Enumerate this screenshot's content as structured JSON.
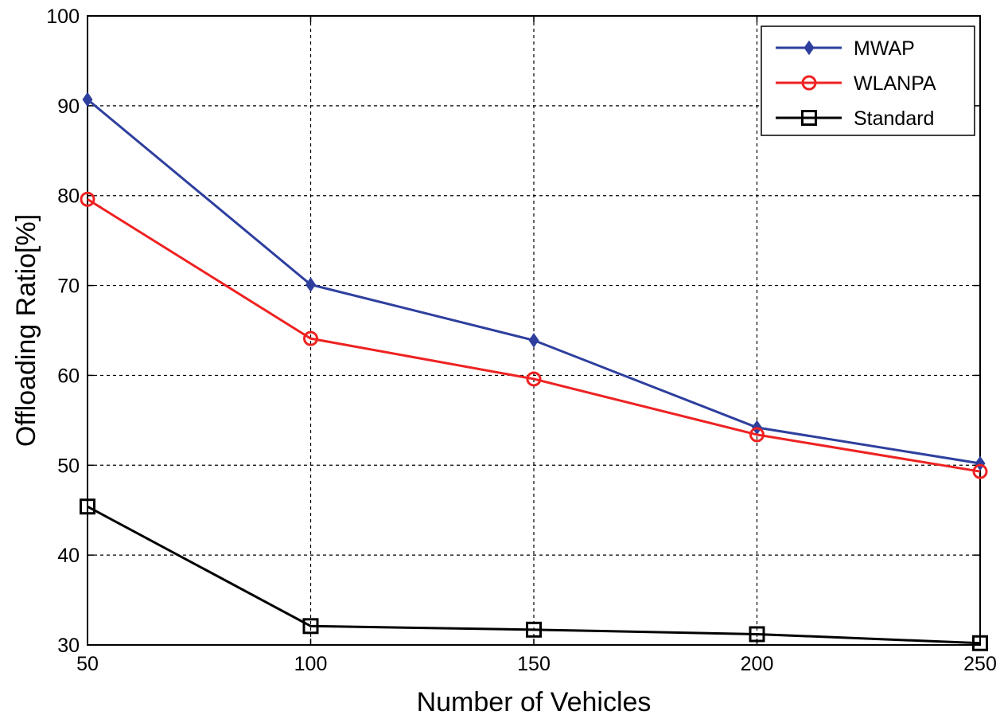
{
  "chart_data": {
    "type": "line",
    "title": "",
    "xlabel": "Number of Vehicles",
    "ylabel": "Offloading Ratio[%]",
    "x": [
      50,
      100,
      150,
      200,
      250
    ],
    "xlim": [
      50,
      250
    ],
    "ylim": [
      30,
      100
    ],
    "xticks": [
      "50",
      "100",
      "150",
      "200",
      "250"
    ],
    "yticks": [
      "30",
      "40",
      "50",
      "60",
      "70",
      "80",
      "90",
      "100"
    ],
    "grid": true,
    "legend_position": "top-right",
    "series": [
      {
        "name": "MWAP",
        "color": "#2e3f9e",
        "marker": "diamond",
        "values": [
          90.7,
          70.1,
          63.9,
          54.2,
          50.2
        ]
      },
      {
        "name": "WLANPA",
        "color": "#ee2222",
        "marker": "circle",
        "values": [
          79.6,
          64.1,
          59.6,
          53.4,
          49.3
        ]
      },
      {
        "name": "Standard",
        "color": "#000000",
        "marker": "square",
        "values": [
          45.4,
          32.1,
          31.7,
          31.2,
          30.2
        ]
      }
    ]
  }
}
